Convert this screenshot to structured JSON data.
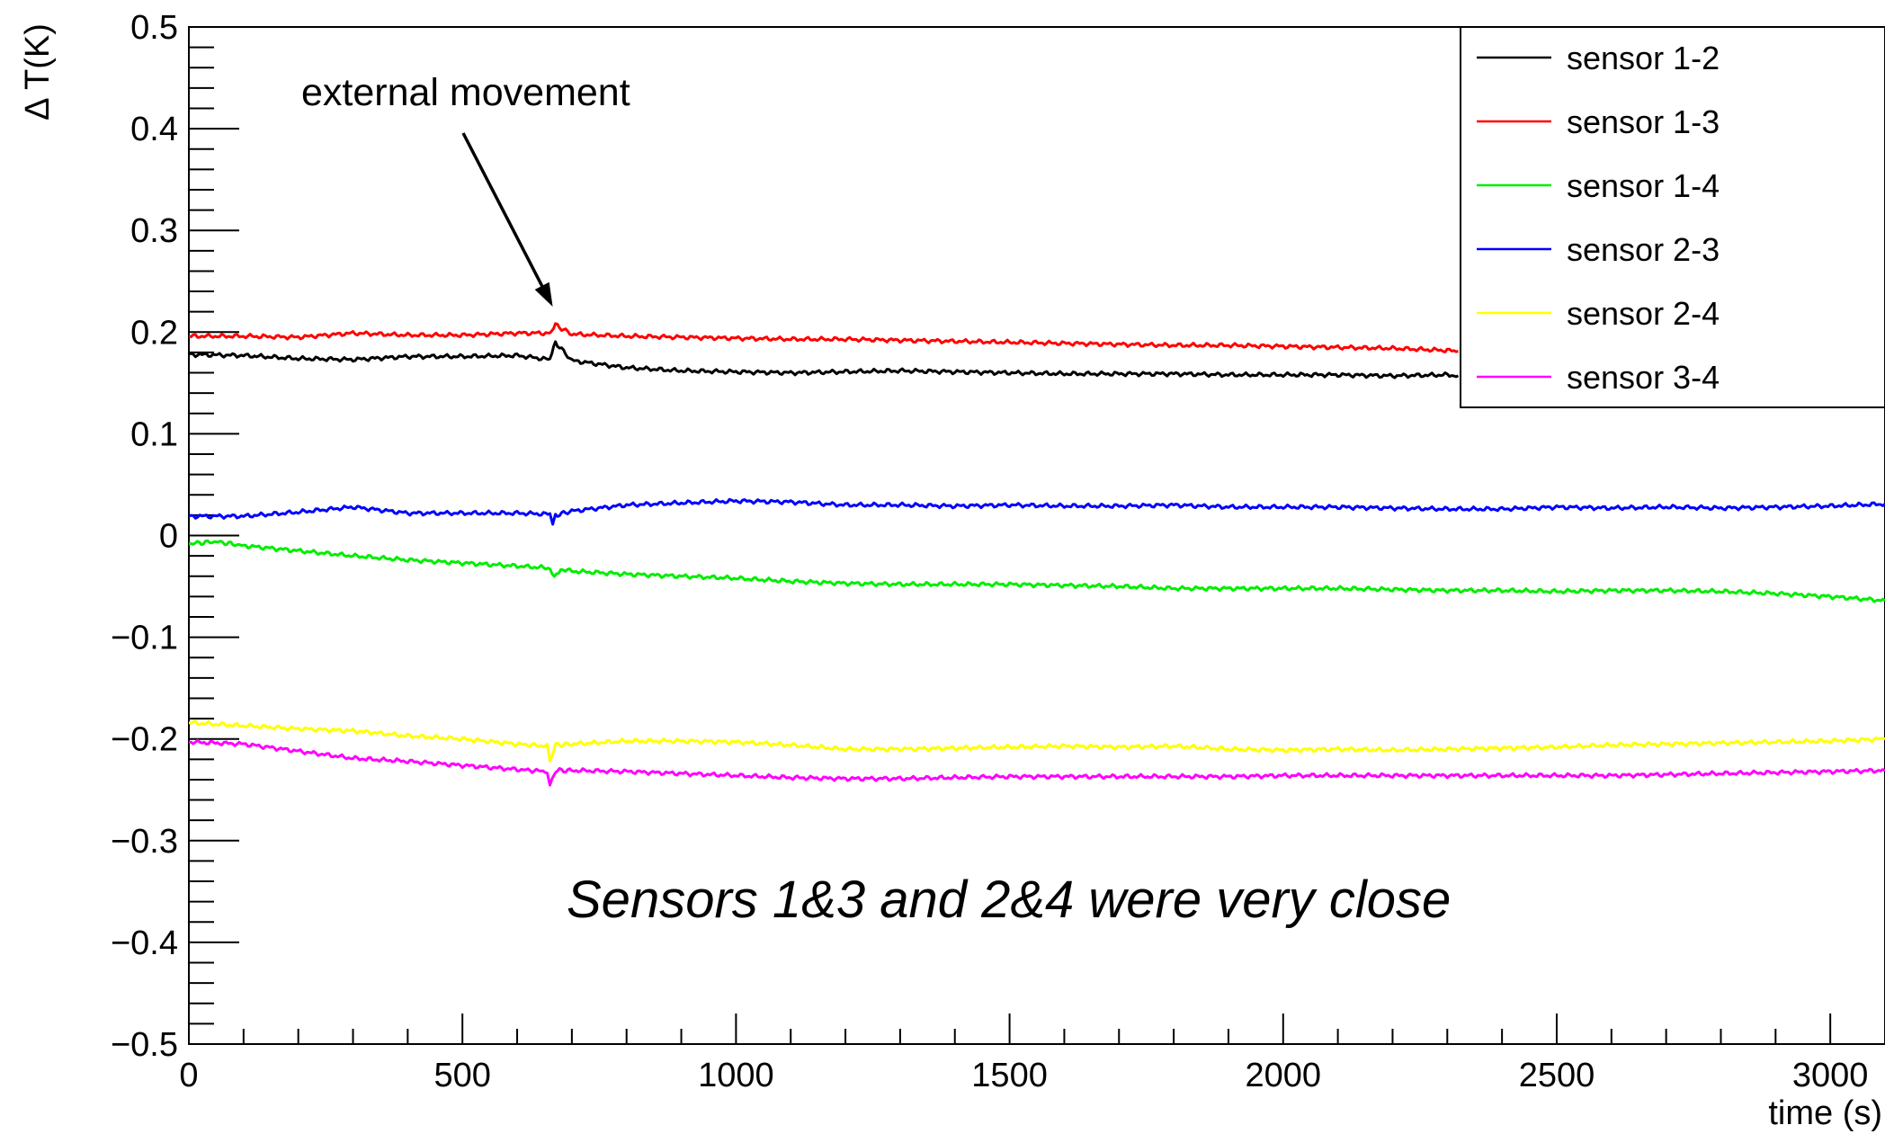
{
  "chart_data": {
    "type": "line",
    "title": "",
    "xlabel": "time (s)",
    "ylabel": "Δ T(K)",
    "xlim": [
      0,
      3100
    ],
    "ylim": [
      -0.5,
      0.5
    ],
    "xticks": [
      0,
      500,
      1000,
      1500,
      2000,
      2500,
      3000
    ],
    "xtick_labels": [
      "0",
      "500",
      "1000",
      "1500",
      "2000",
      "2500",
      "3000"
    ],
    "yticks": [
      -0.5,
      -0.4,
      -0.3,
      -0.2,
      -0.1,
      0,
      0.1,
      0.2,
      0.3,
      0.4,
      0.5
    ],
    "ytick_labels": [
      "−0.5",
      "−0.4",
      "−0.3",
      "−0.2",
      "−0.1",
      "0",
      "0.1",
      "0.2",
      "0.3",
      "0.4",
      "0.5"
    ],
    "grid": false,
    "legend": "top-right",
    "series": [
      {
        "name": "sensor 1-2",
        "color": "#000000",
        "x": [
          0,
          100,
          200,
          300,
          400,
          500,
          600,
          660,
          670,
          700,
          800,
          900,
          1000,
          1100,
          1200,
          1300,
          1400,
          1500,
          1600,
          1700,
          1800,
          1900,
          2000,
          2100,
          2200,
          2300,
          2320
        ],
        "y": [
          0.178,
          0.177,
          0.174,
          0.173,
          0.176,
          0.176,
          0.177,
          0.173,
          0.19,
          0.172,
          0.165,
          0.162,
          0.161,
          0.16,
          0.161,
          0.162,
          0.161,
          0.16,
          0.159,
          0.159,
          0.159,
          0.158,
          0.158,
          0.158,
          0.157,
          0.158,
          0.157
        ]
      },
      {
        "name": "sensor 1-3",
        "color": "#ff0000",
        "x": [
          0,
          100,
          200,
          300,
          400,
          500,
          600,
          660,
          670,
          700,
          800,
          900,
          1000,
          1100,
          1200,
          1300,
          1400,
          1500,
          1600,
          1700,
          1800,
          1900,
          2000,
          2100,
          2200,
          2300,
          2320
        ],
        "y": [
          0.196,
          0.196,
          0.195,
          0.199,
          0.197,
          0.197,
          0.199,
          0.199,
          0.207,
          0.198,
          0.196,
          0.195,
          0.194,
          0.193,
          0.193,
          0.192,
          0.191,
          0.19,
          0.189,
          0.188,
          0.187,
          0.187,
          0.186,
          0.185,
          0.184,
          0.182,
          0.181
        ]
      },
      {
        "name": "sensor 1-4",
        "color": "#00ee00",
        "x": [
          0,
          50,
          100,
          200,
          300,
          400,
          500,
          600,
          660,
          668,
          680,
          700,
          800,
          900,
          1000,
          1100,
          1200,
          1300,
          1400,
          1500,
          1600,
          1700,
          1800,
          1900,
          2000,
          2100,
          2200,
          2300,
          2400,
          2500,
          2600,
          2700,
          2800,
          2900,
          3000,
          3100
        ],
        "y": [
          -0.008,
          -0.006,
          -0.01,
          -0.015,
          -0.02,
          -0.024,
          -0.027,
          -0.03,
          -0.032,
          -0.042,
          -0.033,
          -0.035,
          -0.038,
          -0.04,
          -0.042,
          -0.045,
          -0.047,
          -0.048,
          -0.048,
          -0.048,
          -0.049,
          -0.05,
          -0.052,
          -0.052,
          -0.052,
          -0.052,
          -0.053,
          -0.054,
          -0.054,
          -0.055,
          -0.054,
          -0.054,
          -0.055,
          -0.057,
          -0.06,
          -0.064
        ]
      },
      {
        "name": "sensor 2-3",
        "color": "#0000ff",
        "x": [
          0,
          100,
          200,
          300,
          400,
          500,
          600,
          660,
          665,
          670,
          700,
          800,
          900,
          1000,
          1100,
          1200,
          1300,
          1400,
          1500,
          1600,
          1700,
          1800,
          1900,
          2000,
          2100,
          2200,
          2300,
          2400,
          2500,
          2600,
          2700,
          2800,
          2900,
          3000,
          3100
        ],
        "y": [
          0.019,
          0.019,
          0.023,
          0.028,
          0.022,
          0.022,
          0.022,
          0.021,
          0.012,
          0.02,
          0.024,
          0.03,
          0.032,
          0.034,
          0.033,
          0.03,
          0.03,
          0.029,
          0.03,
          0.029,
          0.029,
          0.03,
          0.028,
          0.028,
          0.028,
          0.027,
          0.026,
          0.026,
          0.028,
          0.027,
          0.028,
          0.027,
          0.028,
          0.029,
          0.031
        ]
      },
      {
        "name": "sensor 2-4",
        "color": "#ffff00",
        "x": [
          0,
          100,
          200,
          300,
          400,
          500,
          600,
          655,
          660,
          670,
          700,
          800,
          900,
          1000,
          1100,
          1200,
          1300,
          1400,
          1500,
          1600,
          1700,
          1800,
          1900,
          2000,
          2100,
          2200,
          2300,
          2400,
          2500,
          2600,
          2700,
          2800,
          2900,
          3000,
          3100
        ],
        "y": [
          -0.184,
          -0.187,
          -0.19,
          -0.192,
          -0.197,
          -0.2,
          -0.205,
          -0.207,
          -0.222,
          -0.206,
          -0.205,
          -0.202,
          -0.202,
          -0.203,
          -0.206,
          -0.21,
          -0.21,
          -0.209,
          -0.208,
          -0.207,
          -0.208,
          -0.207,
          -0.21,
          -0.211,
          -0.21,
          -0.211,
          -0.21,
          -0.209,
          -0.208,
          -0.206,
          -0.205,
          -0.204,
          -0.203,
          -0.202,
          -0.2
        ]
      },
      {
        "name": "sensor 3-4",
        "color": "#ff00ff",
        "x": [
          0,
          100,
          200,
          300,
          400,
          500,
          600,
          655,
          660,
          670,
          700,
          800,
          900,
          1000,
          1100,
          1200,
          1300,
          1400,
          1500,
          1600,
          1700,
          1800,
          1900,
          2000,
          2100,
          2200,
          2300,
          2400,
          2500,
          2600,
          2700,
          2800,
          2900,
          3000,
          3100
        ],
        "y": [
          -0.203,
          -0.205,
          -0.212,
          -0.219,
          -0.222,
          -0.226,
          -0.23,
          -0.232,
          -0.245,
          -0.231,
          -0.231,
          -0.232,
          -0.234,
          -0.236,
          -0.238,
          -0.239,
          -0.239,
          -0.238,
          -0.237,
          -0.237,
          -0.237,
          -0.237,
          -0.237,
          -0.236,
          -0.236,
          -0.236,
          -0.236,
          -0.236,
          -0.236,
          -0.236,
          -0.235,
          -0.234,
          -0.233,
          -0.232,
          -0.231
        ]
      }
    ],
    "annotations": [
      {
        "text": "external movement",
        "arrow_to": [
          665,
          0.225
        ]
      },
      {
        "text": "Sensors 1&3  and 2&4 were very close"
      }
    ]
  }
}
